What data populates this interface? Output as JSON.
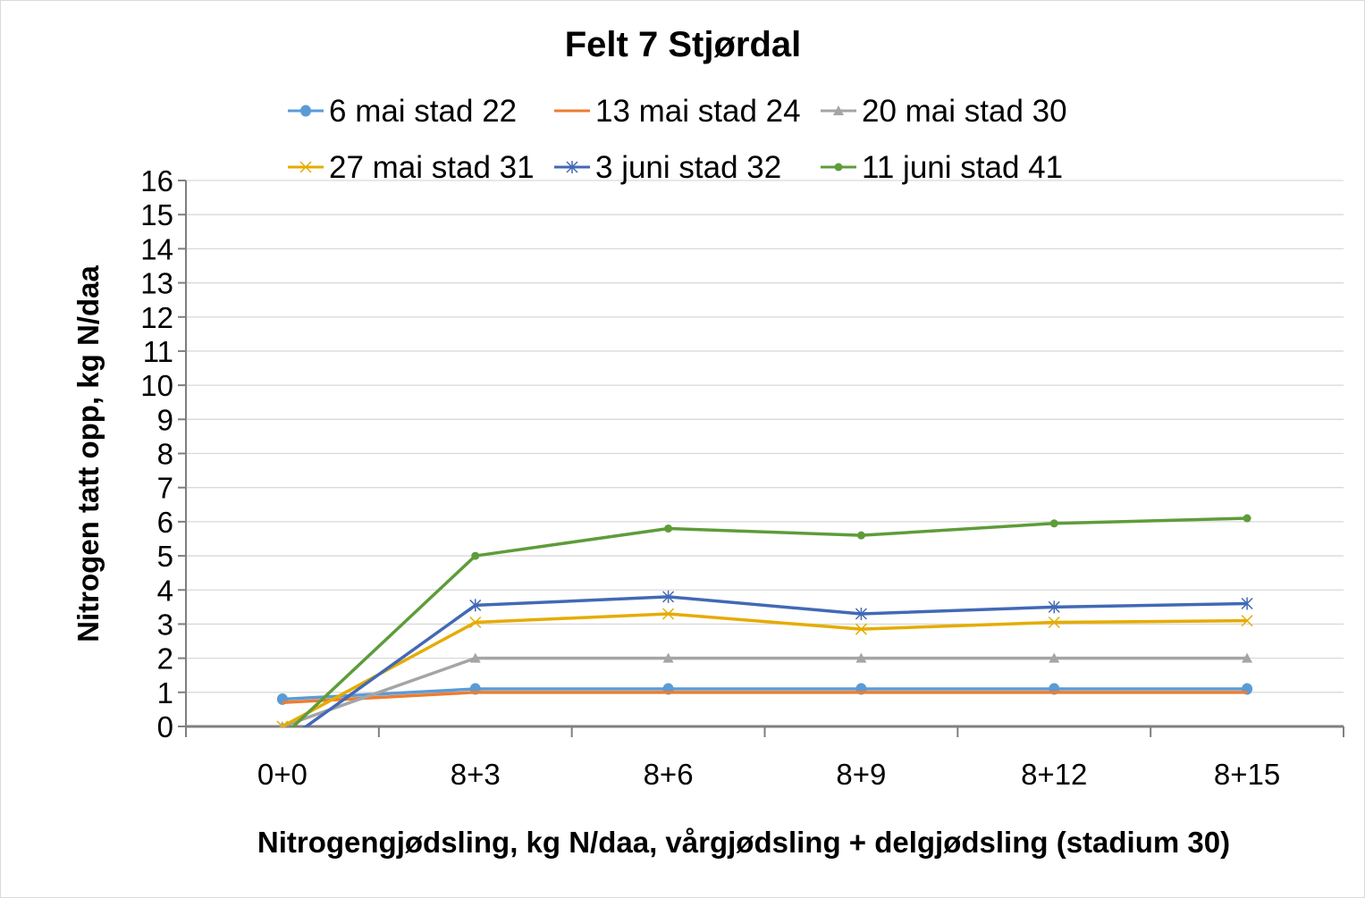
{
  "chart_data": {
    "type": "line",
    "title": "Felt 7 Stjørdal",
    "xlabel": "Nitrogengjødsling, kg N/daa, vårgjødsling + delgjødsling (stadium 30)",
    "ylabel": "Nitrogen tatt opp, kg N/daa",
    "categories": [
      "0+0",
      "8+3",
      "8+6",
      "8+9",
      "8+12",
      "8+15"
    ],
    "ylim": [
      0,
      16
    ],
    "yticks": [
      "0",
      "1",
      "2",
      "3",
      "4",
      "5",
      "6",
      "7",
      "8",
      "9",
      "10",
      "11",
      "12",
      "13",
      "14",
      "15",
      "16"
    ],
    "grid": true,
    "legend_position": "top",
    "series": [
      {
        "name": "6 mai stad 22",
        "color": "#5B9BD5",
        "marker": "circle",
        "values": [
          0.8,
          1.1,
          1.1,
          1.1,
          1.1,
          1.1
        ]
      },
      {
        "name": "13 mai stad 24",
        "color": "#ED7D31",
        "marker": "none",
        "values": [
          0.7,
          1.0,
          1.0,
          1.0,
          1.0,
          1.0
        ]
      },
      {
        "name": "20 mai stad 30",
        "color": "#A5A5A5",
        "marker": "triangle",
        "values": [
          0.0,
          2.0,
          2.0,
          2.0,
          2.0,
          2.0
        ]
      },
      {
        "name": "27 mai stad 31",
        "color": "#E5AC00",
        "marker": "x",
        "values": [
          0.0,
          3.05,
          3.3,
          2.85,
          3.05,
          3.1
        ]
      },
      {
        "name": "3 juni stad 32",
        "color": "#4269B5",
        "marker": "star",
        "values": [
          -0.5,
          3.55,
          3.8,
          3.3,
          3.5,
          3.6
        ]
      },
      {
        "name": "11 juni stad 41",
        "color": "#5E9C3A",
        "marker": "dot",
        "values": [
          -0.3,
          5.0,
          5.8,
          5.6,
          5.95,
          6.1
        ]
      }
    ]
  }
}
